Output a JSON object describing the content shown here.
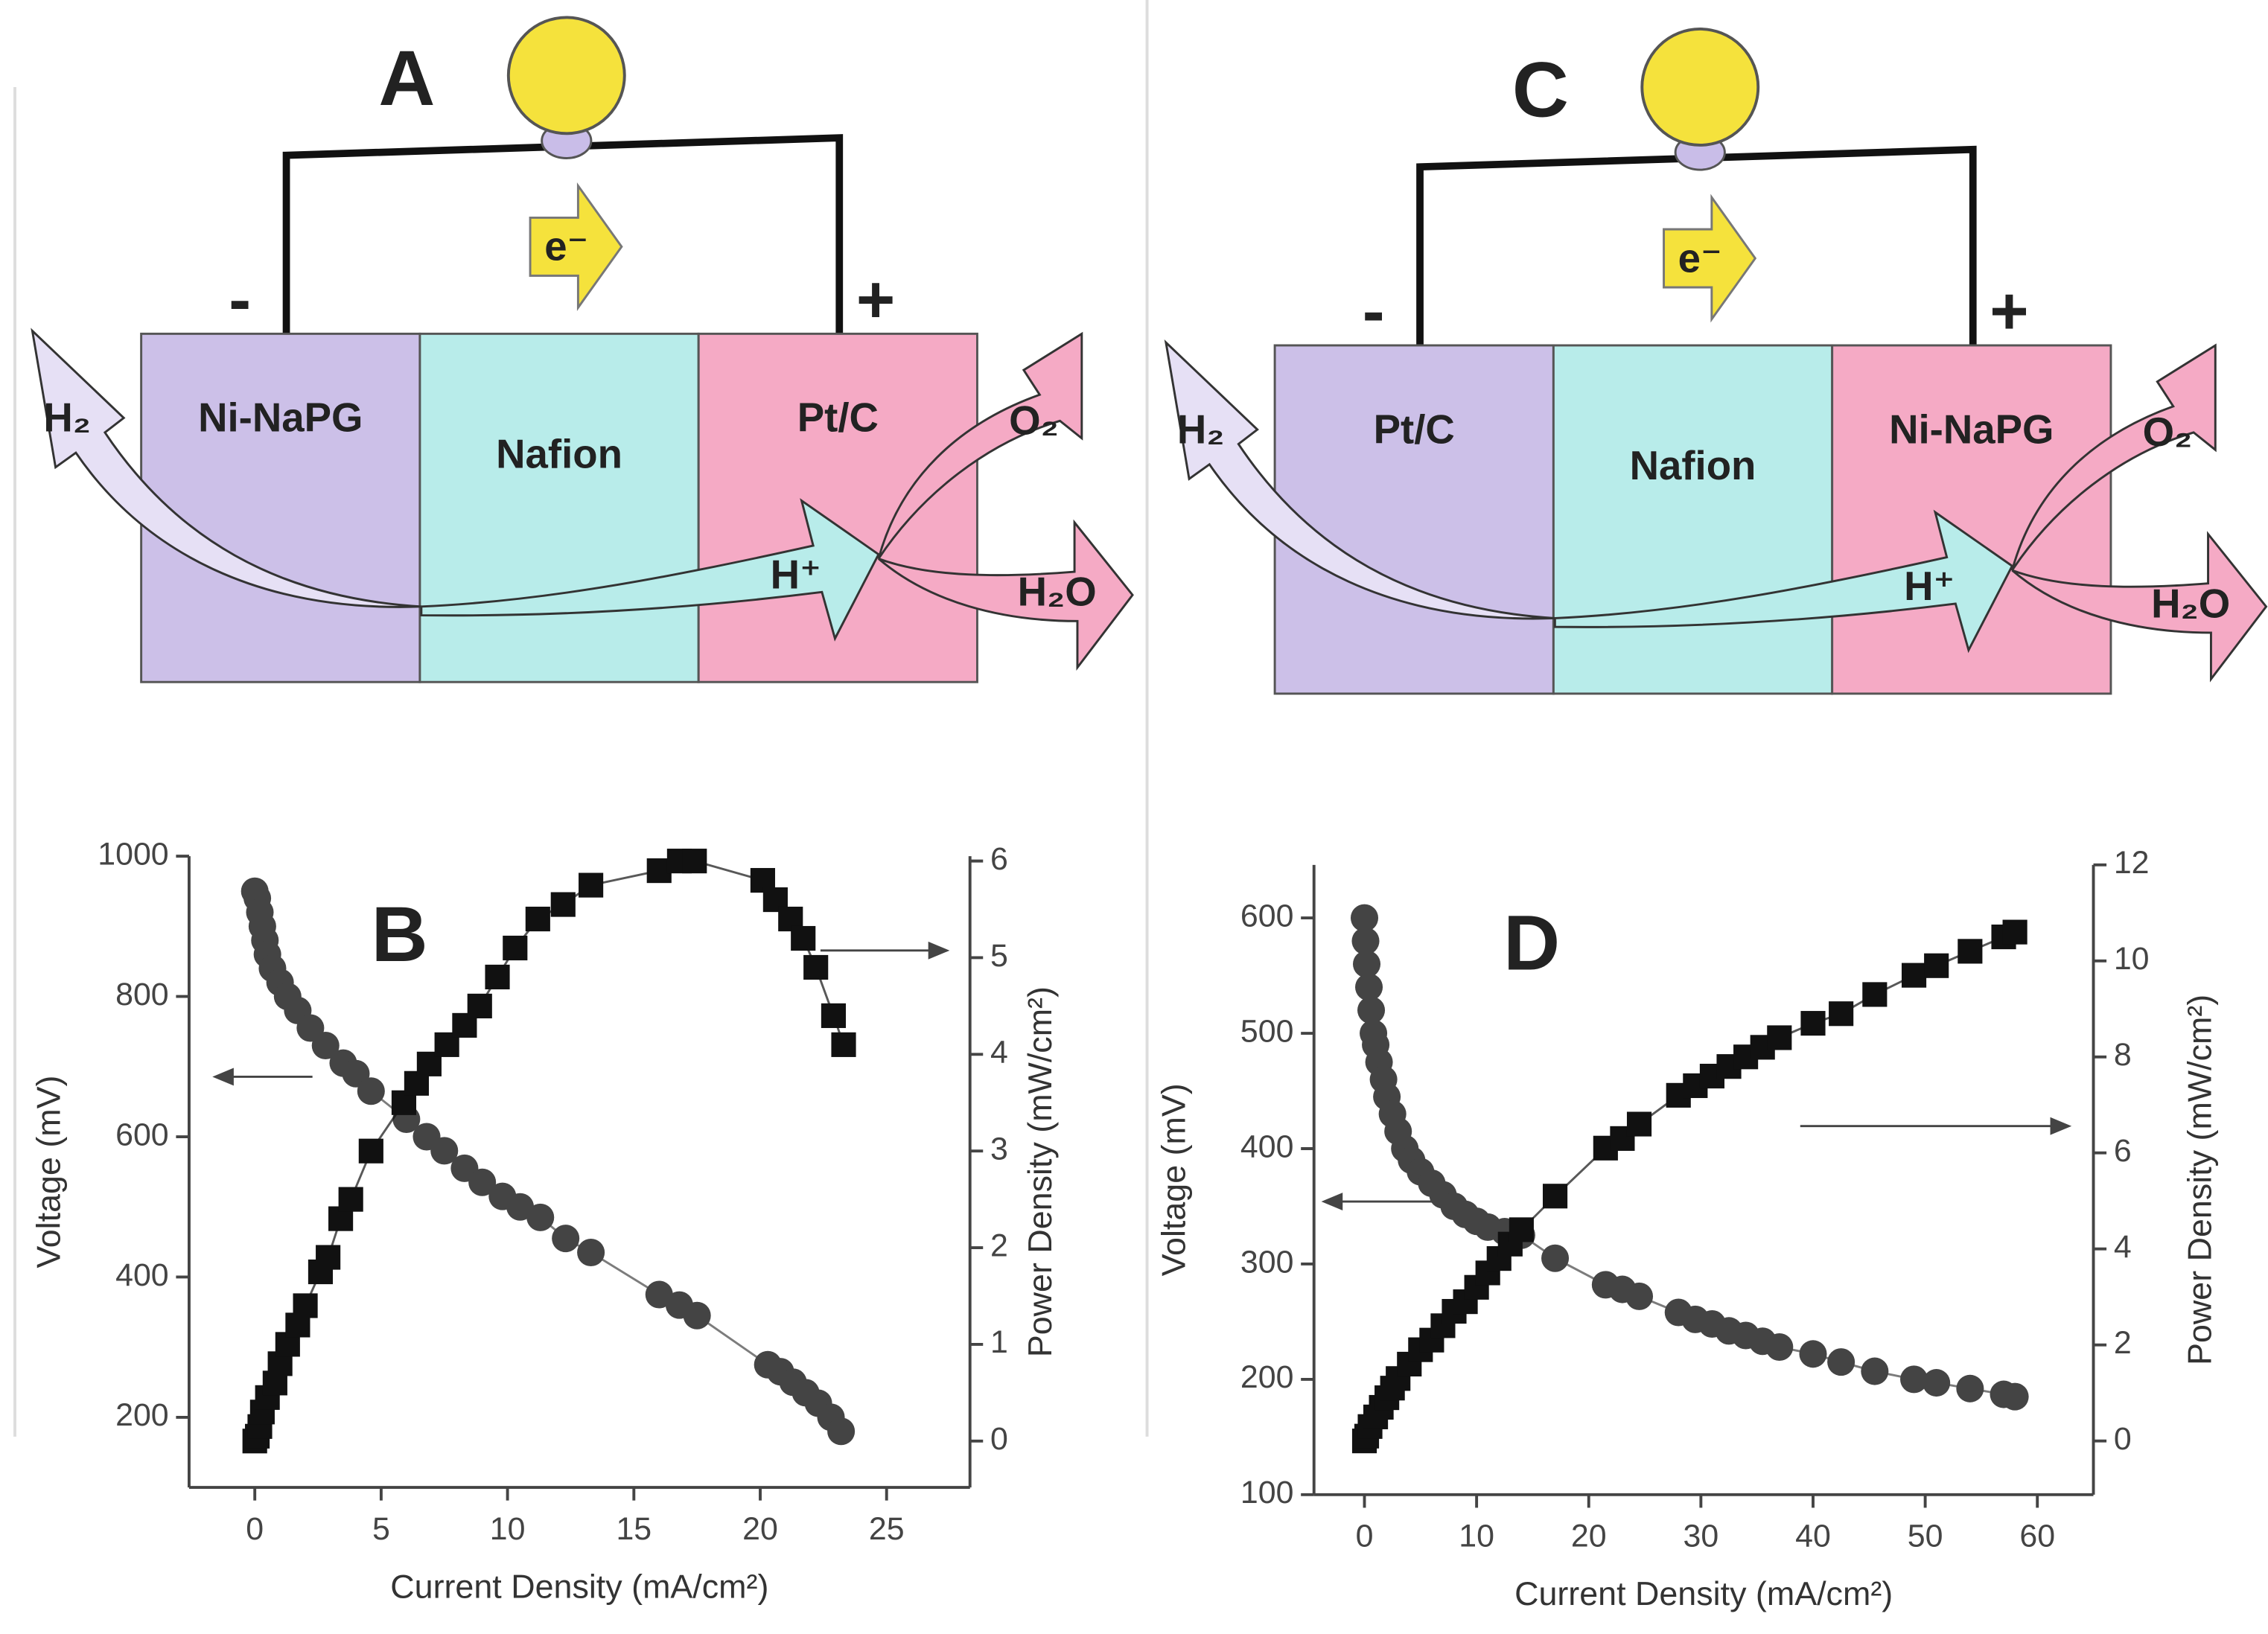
{
  "diagrams": [
    {
      "label": "A",
      "layers": [
        "Ni-NaPG",
        "Nafion",
        "Pt/C"
      ],
      "anode_sign": "-",
      "cathode_sign": "+",
      "electron": "e⁻",
      "fuel": "H₂",
      "oxidant": "O₂",
      "proton": "H⁺",
      "product": "H₂O"
    },
    {
      "label": "C",
      "layers": [
        "Pt/C",
        "Nafion",
        "Ni-NaPG"
      ],
      "anode_sign": "-",
      "cathode_sign": "+",
      "electron": "e⁻",
      "fuel": "H₂",
      "oxidant": "O₂",
      "proton": "H⁺",
      "product": "H₂O"
    }
  ],
  "chart_data": [
    {
      "type": "scatter",
      "title": "B",
      "x_label": "Current Density (mA/cm²)",
      "y_label": "Voltage (mV)",
      "y2_label": "Power Density (mW/cm²)",
      "xlim": [
        -2.6,
        28.3
      ],
      "xticks": [
        0,
        5,
        10,
        15,
        20,
        25
      ],
      "ylim": [
        100,
        1000
      ],
      "yticks": [
        200,
        400,
        600,
        800,
        1000
      ],
      "y2lim": [
        -0.48,
        6.05
      ],
      "y2ticks": [
        0,
        1,
        2,
        3,
        4,
        5,
        6
      ],
      "series": [
        {
          "marker": "circle",
          "color": "#444444",
          "axis": "y",
          "x": [
            0,
            0.1,
            0.2,
            0.3,
            0.4,
            0.5,
            0.7,
            1,
            1.3,
            1.7,
            2.2,
            2.8,
            3.5,
            4,
            4.6,
            6,
            6.8,
            7.5,
            8.3,
            9,
            9.8,
            10.5,
            11.3,
            12.3,
            13.3,
            16,
            16.8,
            17.5,
            20.3,
            20.8,
            21.3,
            21.8,
            22.3,
            22.8,
            23.2
          ],
          "values": [
            950,
            940,
            920,
            900,
            880,
            860,
            840,
            820,
            800,
            780,
            755,
            730,
            705,
            690,
            665,
            625,
            600,
            580,
            555,
            535,
            515,
            500,
            485,
            455,
            435,
            375,
            360,
            345,
            275,
            265,
            250,
            235,
            220,
            200,
            180
          ]
        },
        {
          "marker": "square",
          "color": "#111111",
          "axis": "y2",
          "x": [
            0,
            0.1,
            0.2,
            0.3,
            0.5,
            0.8,
            1,
            1.3,
            1.7,
            2,
            2.6,
            2.9,
            3.4,
            3.8,
            4.6,
            5.9,
            6.4,
            6.9,
            7.6,
            8.3,
            8.9,
            9.6,
            10.3,
            11.2,
            12.2,
            13.3,
            16,
            16.8,
            17.4,
            20.1,
            20.6,
            21.2,
            21.7,
            22.2,
            22.9,
            23.3
          ],
          "values": [
            0,
            0.05,
            0.15,
            0.3,
            0.45,
            0.6,
            0.8,
            1.0,
            1.2,
            1.4,
            1.75,
            1.9,
            2.3,
            2.5,
            3.0,
            3.5,
            3.7,
            3.9,
            4.1,
            4.3,
            4.5,
            4.8,
            5.1,
            5.4,
            5.55,
            5.75,
            5.9,
            6.0,
            6.0,
            5.8,
            5.6,
            5.4,
            5.2,
            4.9,
            4.4,
            4.1
          ]
        }
      ]
    },
    {
      "type": "scatter",
      "title": "D",
      "x_label": "Current Density (mA/cm²)",
      "y_label": "Voltage (mV)",
      "y2_label": "Power Density (mW/cm²)",
      "xlim": [
        -4.5,
        65
      ],
      "xticks": [
        0,
        10,
        20,
        30,
        40,
        50,
        60
      ],
      "ylim": [
        100,
        646
      ],
      "yticks": [
        100,
        200,
        300,
        400,
        500,
        600
      ],
      "y2lim": [
        -1.12,
        12
      ],
      "y2ticks": [
        0,
        2,
        4,
        6,
        8,
        10,
        12
      ],
      "series": [
        {
          "marker": "circle",
          "color": "#444444",
          "axis": "y",
          "x": [
            0,
            0.1,
            0.2,
            0.4,
            0.6,
            0.8,
            1,
            1.3,
            1.7,
            2,
            2.5,
            3,
            3.6,
            4.2,
            5,
            6,
            7,
            8,
            9,
            10,
            11,
            12.5,
            14,
            17,
            21.5,
            23,
            24.5,
            28,
            29.5,
            31,
            32.5,
            34,
            35.5,
            37,
            40,
            42.5,
            45.5,
            49,
            51,
            54,
            57,
            58
          ],
          "values": [
            600,
            580,
            560,
            540,
            520,
            500,
            490,
            475,
            460,
            445,
            430,
            415,
            400,
            390,
            380,
            370,
            360,
            350,
            343,
            337,
            332,
            328,
            325,
            305,
            282,
            278,
            272,
            258,
            252,
            248,
            242,
            238,
            233,
            228,
            222,
            215,
            207,
            200,
            197,
            192,
            187,
            185
          ]
        },
        {
          "marker": "square",
          "color": "#111111",
          "axis": "y2",
          "x": [
            0,
            0.2,
            0.5,
            1,
            1.5,
            2,
            2.5,
            3,
            4,
            5,
            6,
            7,
            8,
            9,
            10,
            11,
            12,
            13,
            14,
            17,
            21.5,
            23,
            24.5,
            28,
            29.5,
            31,
            32.5,
            34,
            35.5,
            37,
            40,
            42.5,
            45.5,
            49,
            51,
            54,
            57,
            58
          ],
          "values": [
            0,
            0.1,
            0.3,
            0.5,
            0.7,
            0.9,
            1.1,
            1.3,
            1.6,
            1.9,
            2.1,
            2.4,
            2.7,
            2.9,
            3.2,
            3.5,
            3.8,
            4.1,
            4.4,
            5.1,
            6.1,
            6.3,
            6.6,
            7.2,
            7.4,
            7.6,
            7.8,
            8.0,
            8.2,
            8.4,
            8.7,
            8.9,
            9.3,
            9.7,
            9.9,
            10.2,
            10.5,
            10.6
          ]
        }
      ]
    }
  ]
}
